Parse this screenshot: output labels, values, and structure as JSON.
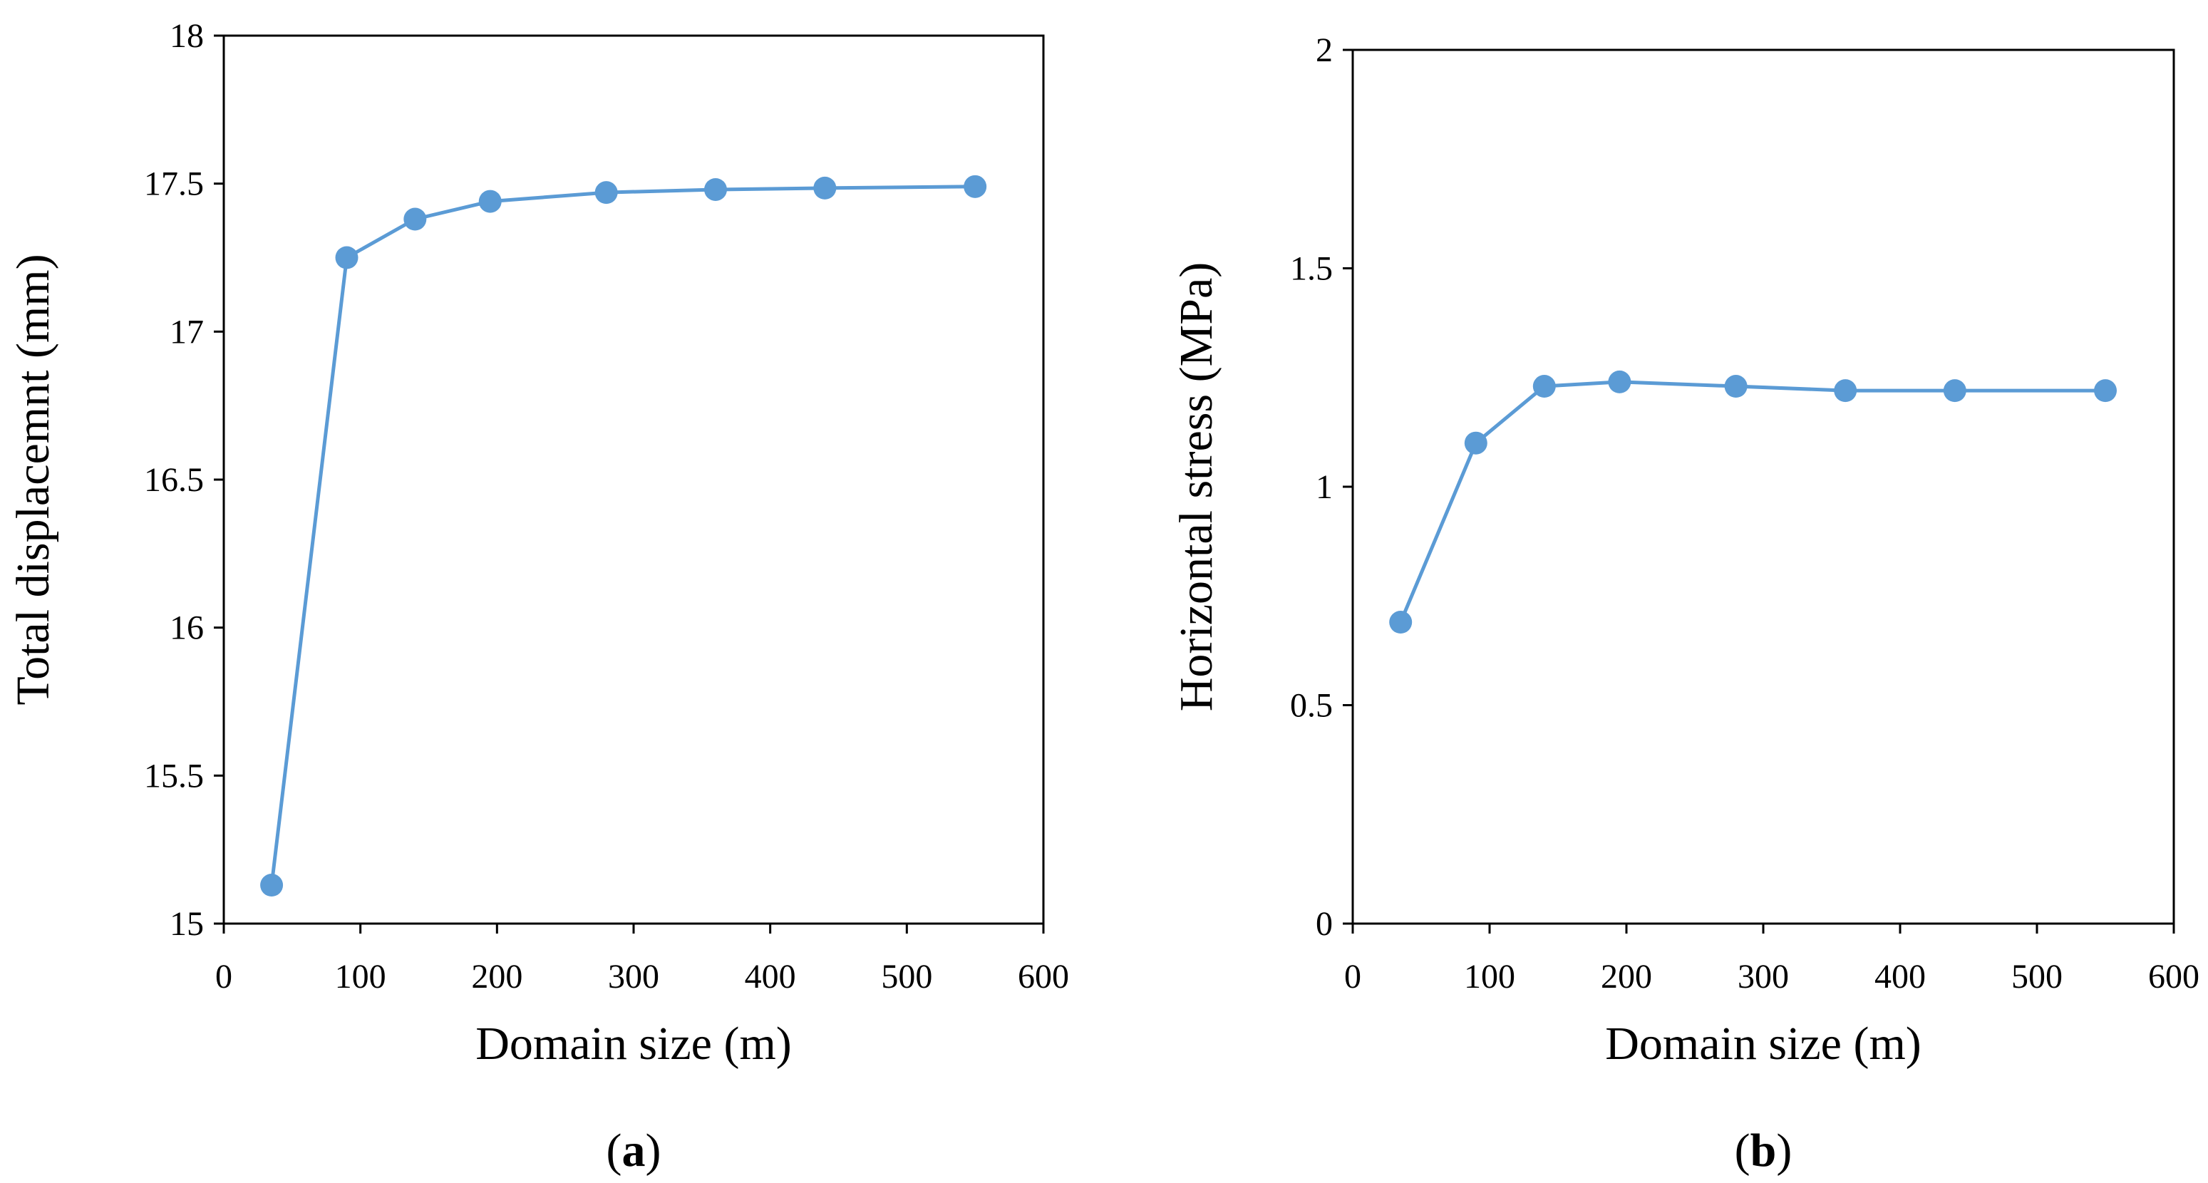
{
  "colors": {
    "series": "#5b9bd5",
    "axis": "#000000",
    "background": "#ffffff"
  },
  "chart_data": [
    {
      "id": "a",
      "type": "line",
      "panel_label": {
        "open": "(",
        "letter": "a",
        "close": ")"
      },
      "xlabel": "Domain size (m)",
      "ylabel": "Total displacemnt (mm)",
      "xlim": [
        0,
        600
      ],
      "ylim": [
        15,
        18
      ],
      "x_ticks": [
        0,
        100,
        200,
        300,
        400,
        500,
        600
      ],
      "y_ticks": [
        15,
        15.5,
        16,
        16.5,
        17,
        17.5,
        18
      ],
      "x_tick_labels": [
        "0",
        "100",
        "200",
        "300",
        "400",
        "500",
        "600"
      ],
      "y_tick_labels": [
        "15",
        "15.5",
        "16",
        "16.5",
        "17",
        "17.5",
        "18"
      ],
      "grid": false,
      "marker": "circle",
      "x": [
        35,
        90,
        140,
        195,
        280,
        360,
        440,
        550
      ],
      "values": [
        15.13,
        17.25,
        17.38,
        17.44,
        17.47,
        17.48,
        17.485,
        17.49
      ]
    },
    {
      "id": "b",
      "type": "line",
      "panel_label": {
        "open": "(",
        "letter": "b",
        "close": ")"
      },
      "xlabel": "Domain size (m)",
      "ylabel": "Horizontal stress (MPa)",
      "xlim": [
        0,
        600
      ],
      "ylim": [
        0,
        2
      ],
      "x_ticks": [
        0,
        100,
        200,
        300,
        400,
        500,
        600
      ],
      "y_ticks": [
        0,
        0.5,
        1,
        1.5,
        2
      ],
      "x_tick_labels": [
        "0",
        "100",
        "200",
        "300",
        "400",
        "500",
        "600"
      ],
      "y_tick_labels": [
        "0",
        "0.5",
        "1",
        "1.5",
        "2"
      ],
      "grid": false,
      "marker": "circle",
      "x": [
        35,
        90,
        140,
        195,
        280,
        360,
        440,
        550
      ],
      "values": [
        0.69,
        1.1,
        1.23,
        1.24,
        1.23,
        1.22,
        1.22,
        1.22
      ]
    }
  ]
}
